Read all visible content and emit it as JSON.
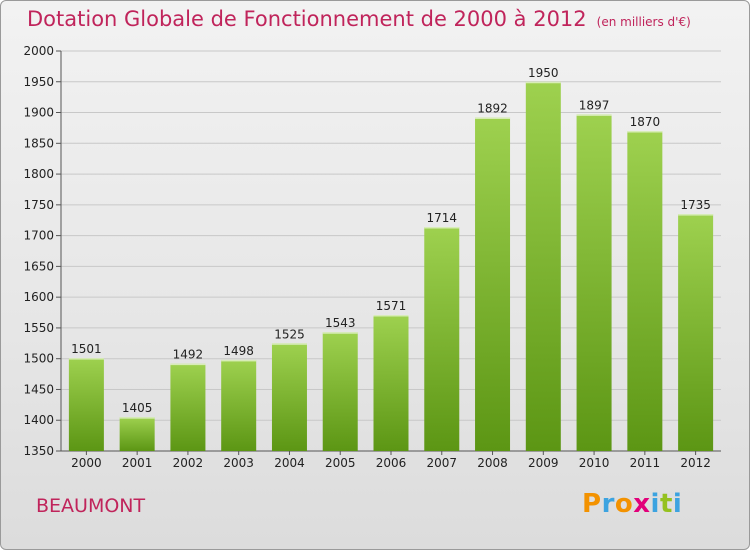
{
  "title": "Dotation Globale de Fonctionnement de 2000 à 2012",
  "unit_note": "(en milliers d'€)",
  "commune": "BEAUMONT",
  "logo": {
    "letters": [
      "P",
      "r",
      "o",
      "x",
      "i",
      "t",
      "i"
    ],
    "colors": [
      "#f39200",
      "#3ca3e0",
      "#f39200",
      "#e2007a",
      "#3ca3e0",
      "#95c11f",
      "#3ca3e0"
    ]
  },
  "colors": {
    "title": "#c0245b",
    "bar_light": "#9ed14f",
    "bar_dark": "#5c9614",
    "grid": "#c8c8c8",
    "axis": "#555555"
  },
  "chart_data": {
    "type": "bar",
    "categories": [
      "2000",
      "2001",
      "2002",
      "2003",
      "2004",
      "2005",
      "2006",
      "2007",
      "2008",
      "2009",
      "2010",
      "2011",
      "2012"
    ],
    "values": [
      1501,
      1405,
      1492,
      1498,
      1525,
      1543,
      1571,
      1714,
      1892,
      1950,
      1897,
      1870,
      1735
    ],
    "ylim": [
      1350,
      2000
    ],
    "yticks": [
      1350,
      1400,
      1450,
      1500,
      1550,
      1600,
      1650,
      1700,
      1750,
      1800,
      1850,
      1900,
      1950,
      2000
    ],
    "grid": true,
    "legend": "none"
  }
}
